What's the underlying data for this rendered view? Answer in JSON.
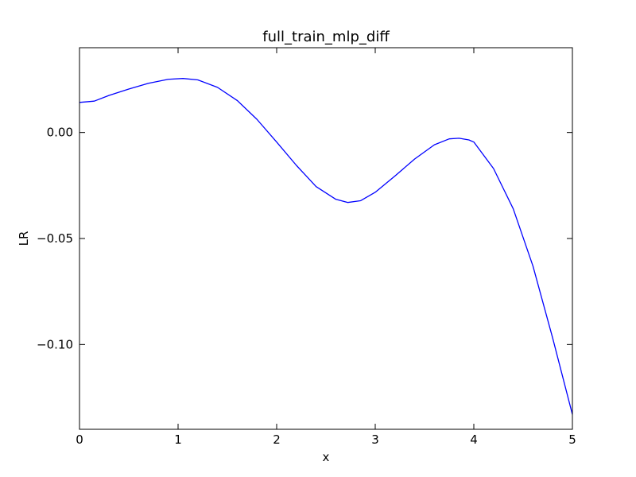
{
  "chart_data": {
    "type": "line",
    "title": "full_train_mlp_diff",
    "xlabel": "x",
    "ylabel": "LR",
    "xlim": [
      0,
      5
    ],
    "ylim": [
      -0.14,
      0.04
    ],
    "xticks": [
      0,
      1,
      2,
      3,
      4,
      5
    ],
    "xtick_labels": [
      "0",
      "1",
      "2",
      "3",
      "4",
      "5"
    ],
    "yticks": [
      0.0,
      -0.05,
      -0.1
    ],
    "ytick_labels": [
      "0.00",
      "−0.05",
      "−0.10"
    ],
    "grid": false,
    "series": [
      {
        "color": "#0000ff",
        "x": [
          0,
          0.15,
          0.3,
          0.5,
          0.7,
          0.9,
          1.05,
          1.2,
          1.4,
          1.6,
          1.8,
          2.0,
          2.2,
          2.4,
          2.6,
          2.72,
          2.85,
          3.0,
          3.2,
          3.4,
          3.6,
          3.75,
          3.85,
          3.95,
          4.0,
          4.2,
          4.4,
          4.6,
          4.8,
          5.0
        ],
        "y": [
          0.0142,
          0.0148,
          0.0175,
          0.0205,
          0.0232,
          0.0251,
          0.0255,
          0.0248,
          0.0213,
          0.0151,
          0.0062,
          -0.0045,
          -0.0155,
          -0.0255,
          -0.0315,
          -0.033,
          -0.0322,
          -0.0282,
          -0.0205,
          -0.0125,
          -0.0058,
          -0.003,
          -0.0027,
          -0.0035,
          -0.0045,
          -0.017,
          -0.036,
          -0.063,
          -0.097,
          -0.133
        ]
      }
    ]
  }
}
